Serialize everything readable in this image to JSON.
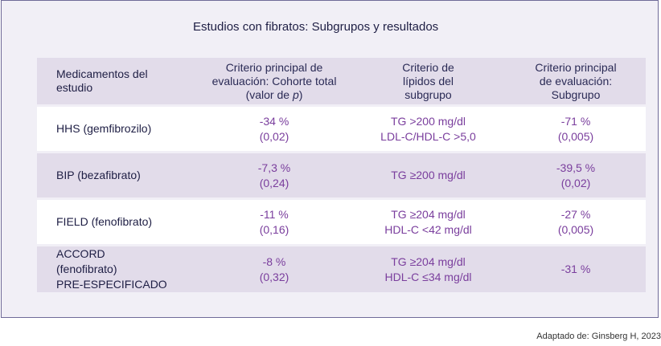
{
  "title": "Estudios con fibratos: Subgrupos y resultados",
  "headers": {
    "col1": [
      "Medicamentos del",
      "estudio"
    ],
    "col2_line1": "Criterio principal de",
    "col2_line2": "evaluación: Cohorte total",
    "col2_line3_prefix": "(valor de ",
    "col2_line3_italic": "p",
    "col2_line3_suffix": ")",
    "col3": [
      "Criterio de",
      "lípidos del",
      "subgrupo"
    ],
    "col4": [
      "Criterio principal",
      "de evaluación:",
      "Subgrupo"
    ]
  },
  "rows": [
    {
      "study": [
        "HHS  (gemfibrozilo)"
      ],
      "total": [
        "-34 %",
        "(0,02)"
      ],
      "lipid": [
        "TG >200 mg/dl",
        "LDL-C/HDL-C >5,0"
      ],
      "subgroup": [
        "-71 %",
        "(0,005)"
      ]
    },
    {
      "study": [
        "BIP  (bezafibrato)"
      ],
      "total": [
        "-7,3 %",
        "(0,24)"
      ],
      "lipid": [
        "TG ≥200 mg/dl"
      ],
      "subgroup": [
        "-39,5 %",
        "(0,02)"
      ]
    },
    {
      "study": [
        "FIELD  (fenofibrato)"
      ],
      "total": [
        "-11 %",
        "(0,16)"
      ],
      "lipid": [
        "TG ≥204 mg/dl",
        "HDL-C <42 mg/dl"
      ],
      "subgroup": [
        "-27 %",
        "(0,005)"
      ]
    },
    {
      "study": [
        "ACCORD",
        "(fenofibrato)",
        "PRE-ESPECIFICADO"
      ],
      "total": [
        "-8 %",
        "(0,32)"
      ],
      "lipid": [
        "TG ≥204 mg/dl",
        "HDL-C ≤34 mg/dl"
      ],
      "subgroup": [
        "-31 %"
      ]
    }
  ],
  "source": "Adaptado de: Ginsberg H, 2023"
}
